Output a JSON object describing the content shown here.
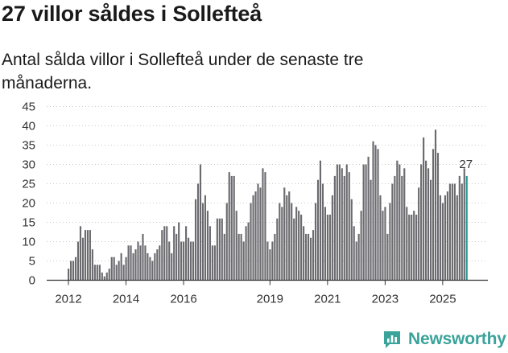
{
  "title": "27 villor såldes i Sollefteå",
  "subtitle": "Antal sålda villor i Sollefteå under de senaste tre månaderna.",
  "brand": {
    "name": "Newsworthy",
    "icon": "newsworthy-logo-icon"
  },
  "colors": {
    "bar": "#6b6a6f",
    "highlight": "#2a9a93",
    "text": "#1a1a1a",
    "axis": "#333333"
  },
  "chart_data": {
    "type": "bar",
    "title": "27 villor såldes i Sollefteå",
    "xlabel": "",
    "ylabel": "",
    "ylim": [
      0,
      45
    ],
    "yticks": [
      0,
      5,
      10,
      15,
      20,
      25,
      30,
      35,
      40,
      45
    ],
    "xticks": [
      {
        "label": "2012",
        "index": 0
      },
      {
        "label": "2014",
        "index": 24
      },
      {
        "label": "2016",
        "index": 48
      },
      {
        "label": "2019",
        "index": 84
      },
      {
        "label": "2021",
        "index": 108
      },
      {
        "label": "2023",
        "index": 132
      },
      {
        "label": "2025",
        "index": 156
      }
    ],
    "start": "2012-01",
    "highlight_label": "27",
    "values": [
      3,
      5,
      5,
      6,
      10,
      14,
      11,
      13,
      13,
      13,
      8,
      4,
      4,
      4,
      2,
      1,
      2,
      3,
      6,
      6,
      4,
      5,
      7,
      4,
      6,
      9,
      9,
      7,
      8,
      10,
      9,
      12,
      9,
      7,
      6,
      5,
      7,
      8,
      9,
      13,
      14,
      14,
      10,
      7,
      14,
      12,
      15,
      10,
      10,
      14,
      11,
      10,
      10,
      21,
      25,
      30,
      20,
      22,
      18,
      14,
      9,
      9,
      16,
      16,
      16,
      12,
      20,
      28,
      27,
      27,
      18,
      12,
      12,
      10,
      14,
      15,
      20,
      22,
      23,
      25,
      24,
      29,
      28,
      10,
      8,
      10,
      12,
      16,
      20,
      19,
      24,
      22,
      23,
      20,
      16,
      19,
      18,
      17,
      14,
      12,
      12,
      11,
      13,
      20,
      26,
      31,
      25,
      19,
      17,
      17,
      22,
      27,
      30,
      30,
      29,
      27,
      30,
      28,
      21,
      14,
      10,
      12,
      18,
      30,
      30,
      32,
      26,
      36,
      35,
      34,
      22,
      18,
      19,
      12,
      20,
      25,
      27,
      31,
      30,
      27,
      29,
      19,
      17,
      17,
      18,
      17,
      24,
      30,
      37,
      31,
      29,
      26,
      34,
      39,
      33,
      22,
      20,
      22,
      23,
      25,
      25,
      25,
      22,
      27,
      25,
      29,
      27
    ]
  }
}
